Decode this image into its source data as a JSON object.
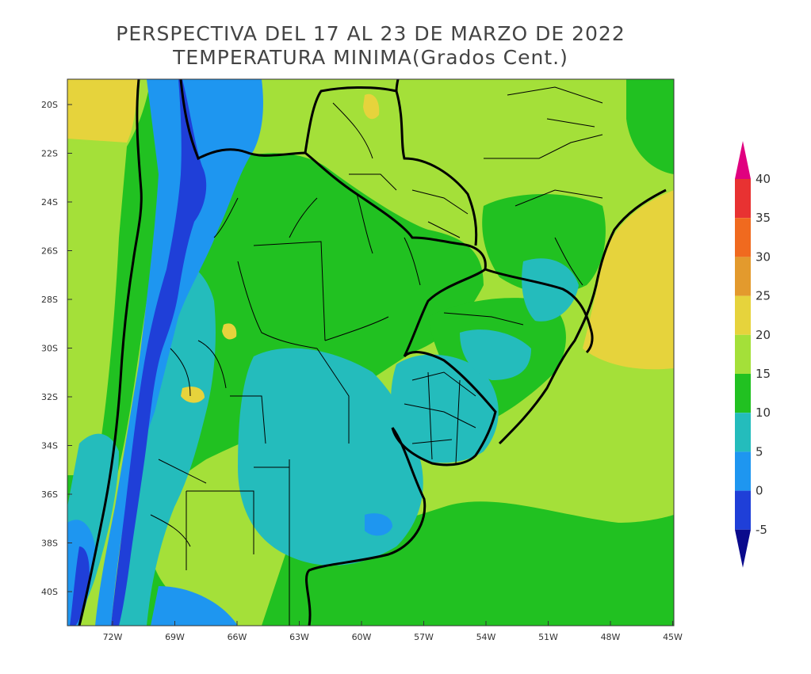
{
  "title_line1": "PERSPECTIVA DEL 17 AL 23 DE MARZO DE 2022",
  "title_line2": "TEMPERATURA MINIMA(Grados Cent.)",
  "lat_labels": [
    "20S",
    "22S",
    "24S",
    "26S",
    "28S",
    "30S",
    "32S",
    "34S",
    "36S",
    "38S",
    "40S"
  ],
  "lon_labels": [
    "72W",
    "69W",
    "66W",
    "63W",
    "60W",
    "57W",
    "54W",
    "51W",
    "48W",
    "45W"
  ],
  "colorbar": {
    "labels": [
      "40",
      "35",
      "30",
      "25",
      "20",
      "15",
      "10",
      "5",
      "0",
      "-5"
    ],
    "colors": [
      "#e0007f",
      "#e83232",
      "#f06a1f",
      "#e39a2d",
      "#e6d33c",
      "#a4e039",
      "#21c121",
      "#24bcbc",
      "#1e96f0",
      "#1f3fd8",
      "#0a0a8c"
    ]
  },
  "palette": {
    "lt_-5": "#0a0a8c",
    "m5_0": "#1f3fd8",
    "0_5": "#1e96f0",
    "5_10": "#24bcbc",
    "10_15": "#21c121",
    "15_20": "#a4e039",
    "20_25": "#e6d33c"
  }
}
